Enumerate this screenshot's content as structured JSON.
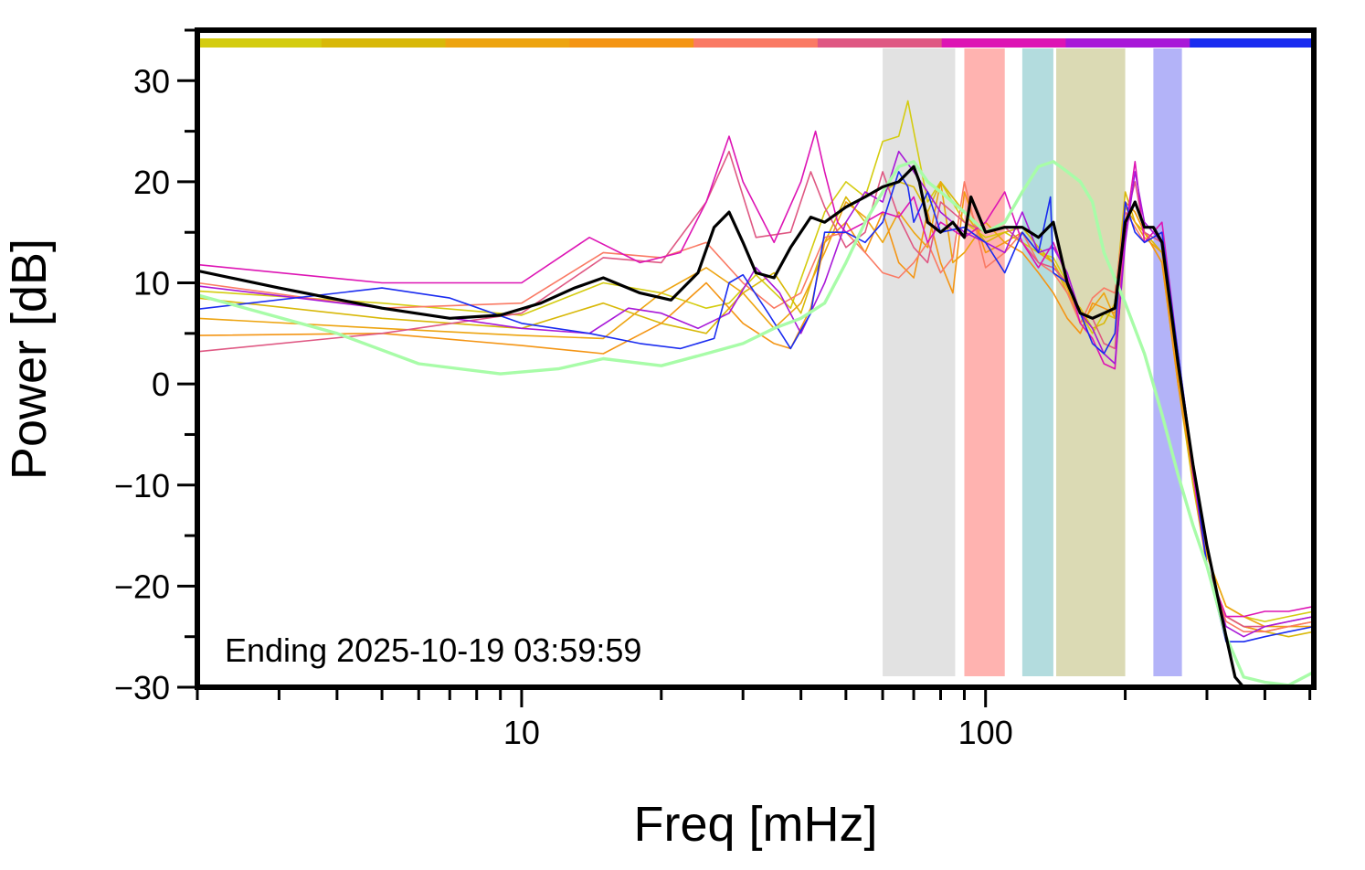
{
  "chart_data": {
    "type": "line",
    "title": "",
    "xlabel": "Freq [mHz]",
    "ylabel": "Power [dB]",
    "x_scale": "log",
    "xlim": [
      2,
      510
    ],
    "ylim": [
      -30,
      35
    ],
    "x_tick_labels": [
      10,
      100
    ],
    "y_tick_labels": [
      30,
      20,
      10,
      0,
      -10,
      -20,
      -30
    ],
    "grid": false,
    "legend": "none",
    "annotation": "Ending 2025-10-19 03:59:59",
    "top_color_bar": [
      "#d4cc10",
      "#d8b808",
      "#eda410",
      "#f49514",
      "#fa7a64",
      "#df5883",
      "#dd14b4",
      "#a818d8",
      "#1a2cf0"
    ],
    "bands": [
      {
        "x0": 60,
        "x1": 86,
        "color": "#e2e2e2"
      },
      {
        "x0": 90,
        "x1": 110,
        "color": "#ffb3b0"
      },
      {
        "x0": 120,
        "x1": 140,
        "color": "#b3dcde"
      },
      {
        "x0": 142,
        "x1": 200,
        "color": "#dbdab4"
      },
      {
        "x0": 230,
        "x1": 265,
        "color": "#b3b3f8"
      }
    ],
    "series": [
      {
        "color": "#d4cc10",
        "width": 1.6,
        "x": [
          2,
          5,
          10,
          15,
          20,
          25,
          28,
          32,
          38,
          45,
          50,
          55,
          60,
          65,
          68,
          70,
          75,
          80,
          90,
          100,
          110,
          120,
          130,
          140,
          150,
          160,
          170,
          180,
          190,
          200,
          210,
          220,
          240,
          260,
          280,
          300,
          330,
          360,
          400,
          450,
          510
        ],
        "y": [
          9.2,
          8.0,
          6.8,
          10.0,
          9.0,
          7.5,
          8.0,
          10.8,
          7.5,
          17.0,
          20.0,
          18.5,
          24.0,
          24.5,
          28.0,
          25.0,
          18.0,
          20.0,
          16.0,
          14.5,
          15.0,
          14.0,
          13.0,
          12.5,
          10.0,
          7.0,
          5.0,
          7.0,
          6.5,
          18.0,
          17.0,
          15.0,
          12.0,
          0.0,
          -8.0,
          -17.0,
          -22.0,
          -23.0,
          -23.5,
          -23.0,
          -22.5
        ]
      },
      {
        "color": "#d8b808",
        "width": 1.6,
        "x": [
          2,
          5,
          10,
          15,
          20,
          25,
          30,
          35,
          40,
          45,
          50,
          55,
          60,
          65,
          70,
          75,
          80,
          90,
          100,
          110,
          120,
          130,
          140,
          150,
          160,
          170,
          180,
          190,
          200,
          210,
          220,
          240,
          260,
          280,
          300,
          330,
          360,
          400,
          450,
          510
        ],
        "y": [
          8.5,
          6.5,
          5.5,
          8.0,
          6.0,
          5.0,
          9.0,
          11.0,
          7.0,
          14.0,
          18.5,
          16.0,
          19.0,
          20.0,
          19.5,
          17.0,
          20.0,
          17.0,
          14.0,
          15.0,
          15.5,
          13.5,
          12.0,
          9.0,
          7.5,
          5.5,
          6.0,
          8.0,
          19.0,
          16.0,
          15.0,
          13.0,
          0.0,
          -10.0,
          -18.0,
          -23.0,
          -24.0,
          -24.5,
          -25.0,
          -24.5
        ]
      },
      {
        "color": "#eda410",
        "width": 1.6,
        "x": [
          2,
          5,
          10,
          15,
          20,
          25,
          30,
          35,
          40,
          45,
          50,
          55,
          60,
          65,
          70,
          75,
          80,
          85,
          90,
          100,
          110,
          120,
          130,
          140,
          150,
          160,
          170,
          180,
          190,
          200,
          210,
          220,
          240,
          260,
          280,
          300,
          330,
          360,
          400,
          450,
          510
        ],
        "y": [
          6.5,
          5.5,
          4.8,
          4.5,
          9.0,
          11.5,
          9.0,
          5.5,
          8.0,
          13.0,
          18.0,
          16.5,
          14.0,
          17.0,
          15.0,
          13.5,
          20.0,
          12.0,
          13.0,
          16.0,
          14.0,
          15.0,
          13.0,
          12.0,
          9.5,
          6.0,
          7.5,
          9.0,
          6.5,
          17.5,
          16.0,
          14.5,
          13.0,
          1.0,
          -9.0,
          -17.0,
          -22.0,
          -23.0,
          -24.0,
          -24.0,
          -24.0
        ]
      },
      {
        "color": "#f49514",
        "width": 1.6,
        "x": [
          2,
          5,
          10,
          15,
          20,
          25,
          30,
          35,
          38,
          42,
          45,
          50,
          55,
          60,
          65,
          70,
          75,
          80,
          85,
          90,
          100,
          110,
          120,
          130,
          140,
          150,
          160,
          170,
          180,
          190,
          200,
          210,
          220,
          240,
          260,
          280,
          300,
          330,
          360,
          400,
          450,
          510
        ],
        "y": [
          4.8,
          5.0,
          3.8,
          3.0,
          6.0,
          10.0,
          6.0,
          4.0,
          3.5,
          7.5,
          14.0,
          16.0,
          13.0,
          17.0,
          12.0,
          10.5,
          17.0,
          12.0,
          9.0,
          19.0,
          13.0,
          14.0,
          13.0,
          11.0,
          9.0,
          6.5,
          5.0,
          8.0,
          7.5,
          7.0,
          18.0,
          17.0,
          15.0,
          12.0,
          0.0,
          -9.0,
          -18.0,
          -23.0,
          -24.0,
          -24.5,
          -24.0,
          -23.5
        ]
      },
      {
        "color": "#fa7a64",
        "width": 1.6,
        "x": [
          2,
          5,
          10,
          15,
          20,
          25,
          30,
          35,
          40,
          45,
          50,
          55,
          60,
          65,
          70,
          75,
          80,
          85,
          90,
          100,
          110,
          120,
          130,
          140,
          150,
          160,
          170,
          180,
          190,
          200,
          210,
          220,
          240,
          260,
          280,
          300,
          330,
          360,
          400,
          450,
          510
        ],
        "y": [
          10.0,
          7.5,
          8.0,
          13.0,
          12.5,
          14.0,
          10.0,
          7.5,
          9.0,
          14.5,
          15.0,
          13.0,
          11.0,
          10.5,
          12.0,
          14.0,
          11.0,
          12.5,
          20.0,
          11.5,
          13.0,
          15.0,
          12.0,
          11.0,
          9.0,
          6.0,
          8.5,
          9.5,
          9.0,
          17.0,
          15.5,
          14.0,
          15.0,
          2.0,
          -8.0,
          -18.0,
          -23.5,
          -24.5,
          -24.5,
          -24.0,
          -23.5
        ]
      },
      {
        "color": "#df5883",
        "width": 1.6,
        "x": [
          2,
          5,
          10,
          15,
          20,
          25,
          28,
          32,
          38,
          42,
          45,
          50,
          55,
          60,
          65,
          70,
          75,
          80,
          90,
          100,
          110,
          120,
          130,
          140,
          150,
          160,
          170,
          180,
          190,
          200,
          210,
          220,
          240,
          260,
          280,
          300,
          330,
          360,
          400,
          450,
          510
        ],
        "y": [
          3.2,
          5.0,
          7.0,
          12.5,
          12.0,
          18.0,
          23.0,
          14.5,
          15.0,
          21.0,
          17.5,
          13.5,
          15.0,
          21.0,
          16.5,
          13.5,
          12.0,
          18.0,
          16.0,
          15.0,
          15.5,
          14.0,
          12.0,
          11.5,
          10.0,
          7.0,
          6.5,
          4.0,
          3.5,
          16.0,
          20.0,
          15.0,
          14.0,
          2.0,
          -8.0,
          -18.0,
          -23.0,
          -24.0,
          -24.0,
          -23.5,
          -23.0
        ]
      },
      {
        "color": "#dd14b4",
        "width": 1.6,
        "x": [
          2,
          5,
          10,
          14,
          18,
          22,
          25,
          28,
          30,
          35,
          40,
          43,
          45,
          48,
          50,
          55,
          60,
          65,
          70,
          75,
          80,
          90,
          100,
          110,
          120,
          130,
          140,
          150,
          160,
          170,
          180,
          190,
          200,
          210,
          220,
          240,
          260,
          280,
          300,
          330,
          360,
          400,
          450,
          510
        ],
        "y": [
          11.8,
          10.0,
          10.0,
          14.5,
          12.0,
          13.0,
          18.0,
          24.5,
          20.0,
          14.0,
          20.0,
          25.0,
          21.0,
          16.0,
          15.0,
          16.0,
          17.0,
          16.5,
          18.5,
          14.0,
          16.0,
          14.5,
          16.0,
          19.0,
          14.0,
          11.5,
          14.0,
          10.5,
          6.0,
          4.5,
          2.0,
          1.5,
          15.0,
          22.0,
          14.0,
          16.0,
          3.0,
          -9.0,
          -18.0,
          -23.0,
          -23.0,
          -22.5,
          -22.5,
          -22.0
        ]
      },
      {
        "color": "#a818d8",
        "width": 1.6,
        "x": [
          2,
          5,
          10,
          14,
          17,
          20,
          24,
          28,
          32,
          36,
          40,
          45,
          50,
          55,
          60,
          65,
          70,
          75,
          80,
          90,
          100,
          110,
          120,
          130,
          140,
          150,
          160,
          170,
          180,
          190,
          200,
          210,
          220,
          240,
          260,
          280,
          300,
          330,
          360,
          400,
          450,
          510
        ],
        "y": [
          9.7,
          7.5,
          5.5,
          5.0,
          7.5,
          7.0,
          5.5,
          7.0,
          11.5,
          9.0,
          5.0,
          10.0,
          16.0,
          19.0,
          18.0,
          23.0,
          21.0,
          19.0,
          17.0,
          15.0,
          14.0,
          13.0,
          17.0,
          13.0,
          13.5,
          11.0,
          7.0,
          5.5,
          3.0,
          2.0,
          14.0,
          21.0,
          16.0,
          14.0,
          3.0,
          -8.0,
          -18.0,
          -24.0,
          -25.0,
          -24.0,
          -23.5,
          -23.0
        ]
      },
      {
        "color": "#1a2cf0",
        "width": 1.6,
        "x": [
          2,
          5,
          7,
          10,
          14,
          18,
          22,
          26,
          28,
          30,
          34,
          38,
          42,
          45,
          50,
          55,
          60,
          65,
          68,
          70,
          75,
          80,
          90,
          100,
          110,
          120,
          130,
          138,
          140,
          150,
          160,
          170,
          180,
          190,
          200,
          210,
          220,
          240,
          260,
          280,
          300,
          330,
          360,
          400,
          450,
          510
        ],
        "y": [
          7.4,
          9.5,
          8.5,
          6.0,
          5.0,
          4.0,
          3.5,
          4.5,
          10.0,
          10.8,
          7.0,
          3.5,
          7.0,
          15.0,
          15.0,
          14.0,
          16.0,
          21.0,
          19.5,
          16.0,
          19.0,
          15.0,
          15.5,
          14.0,
          11.0,
          15.0,
          13.0,
          18.5,
          11.0,
          10.0,
          7.0,
          4.0,
          3.0,
          5.0,
          18.0,
          15.0,
          14.0,
          15.0,
          3.0,
          -8.0,
          -18.0,
          -25.5,
          -25.5,
          -25.0,
          -24.5,
          -24.0
        ]
      },
      {
        "color": "#a8fca8",
        "width": 3.4,
        "x": [
          2,
          4,
          6,
          9,
          12,
          15,
          20,
          25,
          30,
          35,
          40,
          45,
          50,
          55,
          60,
          65,
          70,
          75,
          80,
          90,
          100,
          110,
          120,
          130,
          140,
          150,
          160,
          170,
          180,
          200,
          220,
          240,
          260,
          280,
          300,
          330,
          360,
          400,
          450,
          510
        ],
        "y": [
          8.8,
          5.0,
          2.0,
          1.0,
          1.5,
          2.5,
          1.8,
          3.0,
          4.0,
          5.5,
          6.5,
          8.0,
          12.0,
          16.0,
          19.0,
          21.5,
          22.0,
          20.0,
          19.0,
          17.0,
          15.0,
          16.0,
          19.0,
          21.5,
          22.0,
          21.0,
          20.0,
          18.0,
          13.0,
          8.0,
          3.0,
          -3.0,
          -9.0,
          -14.0,
          -18.0,
          -25.0,
          -29.0,
          -29.5,
          -29.8,
          -28.5
        ]
      },
      {
        "color": "#000000",
        "width": 3.2,
        "x": [
          2,
          3,
          5,
          7,
          9,
          11,
          13,
          15,
          18,
          21,
          24,
          26,
          28,
          30,
          32,
          35,
          38,
          42,
          45,
          50,
          55,
          60,
          65,
          70,
          72,
          75,
          80,
          85,
          90,
          93,
          100,
          110,
          120,
          130,
          140,
          150,
          160,
          170,
          180,
          190,
          200,
          210,
          220,
          230,
          240,
          260,
          280,
          300,
          330,
          345,
          360,
          400,
          450,
          510
        ],
        "y": [
          11.2,
          9.5,
          7.5,
          6.5,
          6.8,
          8.0,
          9.5,
          10.5,
          9.0,
          8.3,
          11.0,
          15.5,
          17.0,
          14.0,
          11.0,
          10.5,
          13.5,
          16.5,
          16.0,
          17.5,
          18.5,
          19.5,
          20.0,
          21.5,
          20.0,
          16.0,
          15.0,
          16.0,
          14.5,
          18.5,
          15.0,
          15.5,
          15.5,
          14.5,
          16.0,
          10.0,
          7.0,
          6.5,
          7.0,
          7.5,
          16.0,
          18.0,
          15.5,
          15.5,
          14.0,
          2.0,
          -8.0,
          -16.0,
          -25.0,
          -29.0,
          -30.0,
          -30.0,
          -30.0,
          -30.0
        ]
      }
    ]
  }
}
